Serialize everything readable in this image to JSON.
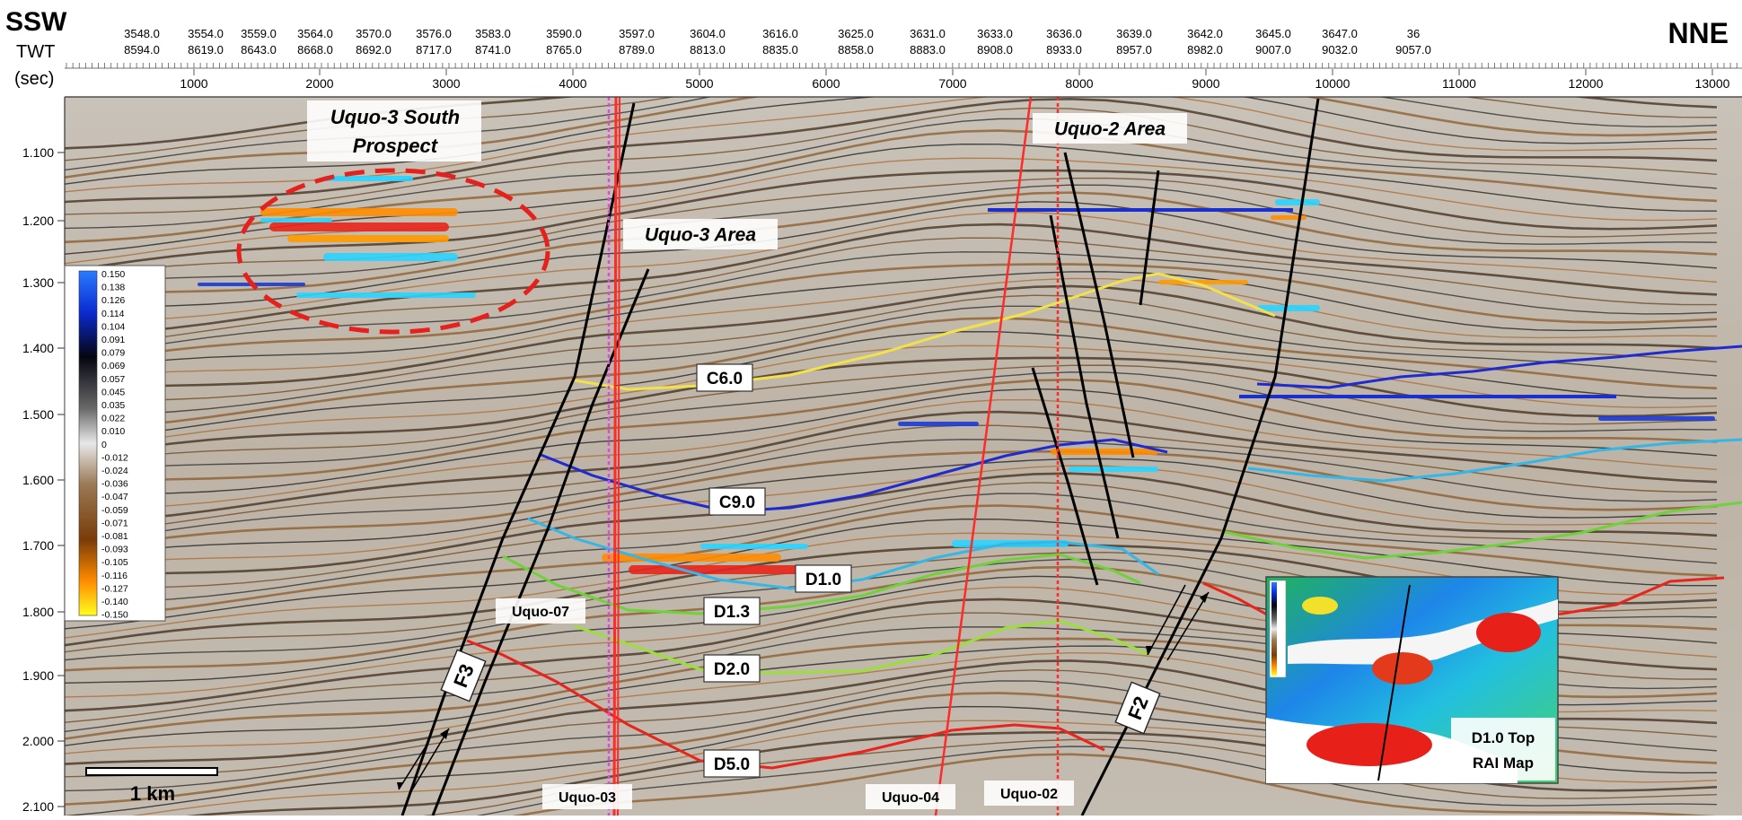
{
  "header": {
    "left_direction": "SSW",
    "right_direction": "NNE",
    "row_label_1": "TWT",
    "row_label_2": "(sec)",
    "shotpoints": [
      "3548.0",
      "3554.0",
      "3559.0",
      "3564.0",
      "3570.0",
      "3576.0",
      "3583.0",
      "3590.0",
      "3597.0",
      "3604.0",
      "3616.0",
      "3625.0",
      "3631.0",
      "3633.0",
      "3636.0",
      "3639.0",
      "3642.0",
      "3645.0",
      "3647.0",
      "36"
    ],
    "cdp": [
      "8594.0",
      "8619.0",
      "8643.0",
      "8668.0",
      "8692.0",
      "8717.0",
      "8741.0",
      "8765.0",
      "8789.0",
      "8813.0",
      "8835.0",
      "8858.0",
      "8883.0",
      "8908.0",
      "8933.0",
      "8957.0",
      "8982.0",
      "9007.0",
      "9032.0",
      "9057.0"
    ],
    "distance_ticks": [
      "1000",
      "2000",
      "3000",
      "4000",
      "5000",
      "6000",
      "7000",
      "8000",
      "9000",
      "10000",
      "11000",
      "12000",
      "13000"
    ]
  },
  "time_axis": {
    "labels": [
      "1.100",
      "1.200",
      "1.300",
      "1.400",
      "1.500",
      "1.600",
      "1.700",
      "1.800",
      "1.900",
      "2.000",
      "2.100"
    ]
  },
  "colorbar": {
    "labels": [
      "0.150",
      "0.138",
      "0.126",
      "0.114",
      "0.104",
      "0.091",
      "0.079",
      "0.069",
      "0.057",
      "0.045",
      "0.035",
      "0.022",
      "0.010",
      "0",
      "-0.012",
      "-0.024",
      "-0.036",
      "-0.047",
      "-0.059",
      "-0.071",
      "-0.081",
      "-0.093",
      "-0.105",
      "-0.116",
      "-0.127",
      "-0.140",
      "-0.150"
    ]
  },
  "annotations": {
    "prospect": [
      "Uquo-3 South",
      "Prospect"
    ],
    "area_uquo3": "Uquo-3 Area",
    "area_uquo2": "Uquo-2 Area",
    "fault_f3": "F3",
    "fault_f2": "F2",
    "scale": "1 km",
    "inset": [
      "D1.0 Top",
      "RAI Map"
    ]
  },
  "horizons": [
    "C6.0",
    "C9.0",
    "D1.0",
    "D1.3",
    "D2.0",
    "D5.0"
  ],
  "wells": [
    "Uquo-07",
    "Uquo-03",
    "Uquo-04",
    "Uquo-02"
  ],
  "colors": {
    "horizon_C6": "#f2e14a",
    "horizon_C9": "#1f2bd1",
    "horizon_D1": "#33b6e8",
    "horizon_D13": "#6fd23b",
    "horizon_D20": "#9be03a",
    "horizon_D50": "#e8241d",
    "well_pink": "#e048e0",
    "well_red": "#ff2a2a",
    "prospect_ellipse": "#e6201c"
  }
}
